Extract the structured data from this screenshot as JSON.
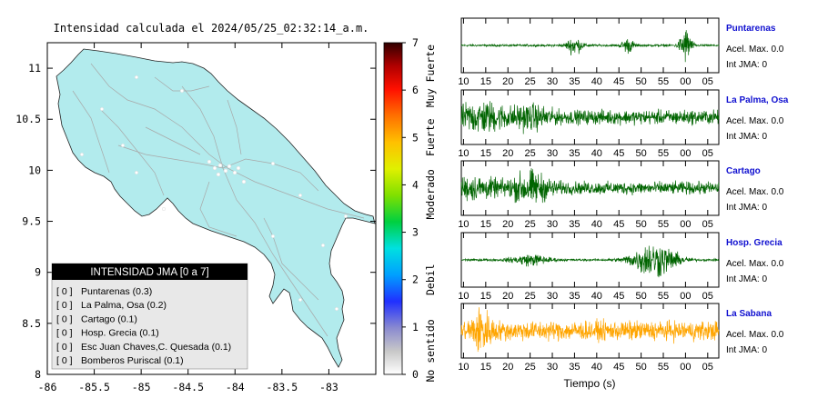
{
  "header": {
    "title": "Intensidad calculada el 2024/05/25_02:32:14_a.m."
  },
  "chart_data": [
    {
      "type": "heatmap",
      "name": "intensity-map",
      "xlabel": "",
      "ylabel": "",
      "xlim": [
        -86.0,
        -82.5
      ],
      "ylim": [
        8.0,
        11.25
      ],
      "x_ticks": [
        "-86",
        "-85.5",
        "-85",
        "-84.5",
        "-84",
        "-83.5",
        "-83"
      ],
      "x_tick_values": [
        -86.0,
        -85.5,
        -85.0,
        -84.5,
        -84.0,
        -83.5,
        -83.0
      ],
      "y_ticks": [
        "8",
        "8.5",
        "9",
        "9.5",
        "10",
        "10.5",
        "11"
      ],
      "y_tick_values": [
        8.0,
        8.5,
        9.0,
        9.5,
        10.0,
        10.5,
        11.0
      ],
      "land_color": "#b2ebed",
      "colorbar": {
        "range": [
          0,
          7
        ],
        "ticks": [
          "0",
          "1",
          "2",
          "3",
          "4",
          "5",
          "6",
          "7"
        ],
        "labels": [
          "No sentido",
          "Debil",
          "Moderado",
          "Fuerte",
          "Muy Fuerte"
        ]
      },
      "legend": {
        "title": "INTENSIDAD JMA [0 a 7]",
        "placement": "bottom-left",
        "items": [
          {
            "level": "[ 0 ]",
            "label": "Puntarenas (0.3)"
          },
          {
            "level": "[ 0 ]",
            "label": "La Palma, Osa (0.2)"
          },
          {
            "level": "[ 0 ]",
            "label": "Cartago (0.1)"
          },
          {
            "level": "[ 0 ]",
            "label": "Hosp. Grecia (0.1)"
          },
          {
            "level": "[ 0 ]",
            "label": "Esc Juan Chaves,C. Quesada (0.1)"
          },
          {
            "level": "[ 0 ]",
            "label": "Bomberos Puriscal (0.1)"
          }
        ]
      }
    },
    {
      "type": "line",
      "name": "waveforms",
      "xlabel": "Tiempo (s)",
      "x_ticks": [
        "10",
        "15",
        "20",
        "25",
        "30",
        "35",
        "40",
        "45",
        "50",
        "55",
        "00",
        "05"
      ],
      "series": [
        {
          "name": "Puntarenas",
          "accel_label": "Acel. Max. 0.0",
          "jma_label": "Int JMA: 0",
          "color": "#006400",
          "bursts": [
            [
              35,
              0.5,
              1.2
            ],
            [
              47,
              0.4,
              1.0
            ],
            [
              60,
              1.0,
              0.9
            ]
          ],
          "base": 0.06
        },
        {
          "name": "La Palma, Osa",
          "accel_label": "Acel. Max. 0.0",
          "jma_label": "Int JMA: 0",
          "color": "#006400",
          "bursts": [
            [
              14,
              0.6,
              4.0
            ],
            [
              25,
              0.4,
              3.0
            ]
          ],
          "base": 0.4
        },
        {
          "name": "Cartago",
          "accel_label": "Acel. Max. 0.0",
          "jma_label": "Int JMA: 0",
          "color": "#006400",
          "bursts": [
            [
              25,
              0.7,
              3.0
            ],
            [
              12,
              0.4,
              4.0
            ]
          ],
          "base": 0.35
        },
        {
          "name": "Hosp. Grecia",
          "accel_label": "Acel. Max. 0.0",
          "jma_label": "Int JMA: 0",
          "color": "#006400",
          "bursts": [
            [
              53,
              1.0,
              3.5
            ],
            [
              25,
              0.3,
              3.0
            ]
          ],
          "base": 0.06
        },
        {
          "name": "La Sabana",
          "accel_label": "Acel. Max. 0.0",
          "jma_label": "Int JMA: 0",
          "color": "#ffa500",
          "bursts": [
            [
              14,
              0.9,
              1.5
            ]
          ],
          "base": 0.55
        }
      ]
    }
  ]
}
